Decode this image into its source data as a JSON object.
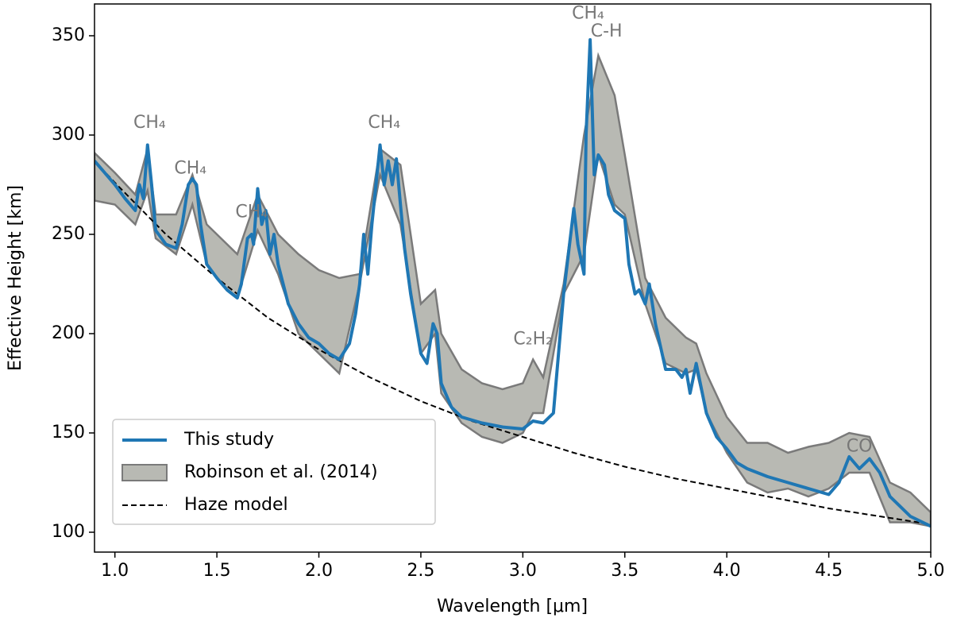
{
  "chart_data": {
    "type": "line",
    "xlabel": "Wavelength [μm]",
    "ylabel": "Effective Height [km]",
    "xlim": [
      0.9,
      5.0
    ],
    "ylim": [
      90,
      366
    ],
    "xticks": [
      {
        "value": 1,
        "label": "1.0"
      },
      {
        "value": 1.5,
        "label": "1.5"
      },
      {
        "value": 2,
        "label": "2.0"
      },
      {
        "value": 2.5,
        "label": "2.5"
      },
      {
        "value": 3,
        "label": "3.0"
      },
      {
        "value": 3.5,
        "label": "3.5"
      },
      {
        "value": 4,
        "label": "4.0"
      },
      {
        "value": 4.5,
        "label": "4.5"
      },
      {
        "value": 5,
        "label": "5.0"
      }
    ],
    "yticks": [
      100,
      150,
      200,
      250,
      300,
      350
    ],
    "legend": "lower left",
    "annotations": [
      "CH₄",
      "CH₄",
      "CH₄",
      "CH₄",
      "CH₄",
      "C-H",
      "C₂H₂",
      "CO"
    ],
    "series": [
      {
        "name": "This study",
        "color": "#1f77b4",
        "style": "line",
        "x": [
          0.9,
          1.0,
          1.05,
          1.1,
          1.12,
          1.14,
          1.16,
          1.18,
          1.2,
          1.25,
          1.3,
          1.33,
          1.36,
          1.38,
          1.4,
          1.42,
          1.45,
          1.5,
          1.55,
          1.6,
          1.62,
          1.65,
          1.67,
          1.68,
          1.7,
          1.72,
          1.74,
          1.76,
          1.78,
          1.8,
          1.85,
          1.9,
          1.95,
          2.0,
          2.05,
          2.1,
          2.15,
          2.18,
          2.2,
          2.22,
          2.24,
          2.26,
          2.28,
          2.3,
          2.32,
          2.34,
          2.36,
          2.38,
          2.4,
          2.42,
          2.45,
          2.5,
          2.53,
          2.56,
          2.58,
          2.6,
          2.65,
          2.7,
          2.8,
          2.9,
          3.0,
          3.05,
          3.1,
          3.15,
          3.2,
          3.25,
          3.27,
          3.3,
          3.31,
          3.33,
          3.35,
          3.37,
          3.4,
          3.42,
          3.45,
          3.5,
          3.52,
          3.55,
          3.57,
          3.6,
          3.62,
          3.65,
          3.7,
          3.75,
          3.78,
          3.8,
          3.82,
          3.85,
          3.88,
          3.9,
          3.95,
          4.0,
          4.05,
          4.1,
          4.15,
          4.2,
          4.3,
          4.4,
          4.5,
          4.55,
          4.6,
          4.65,
          4.7,
          4.75,
          4.8,
          4.9,
          5.0
        ],
        "values": [
          287,
          275,
          268,
          262,
          275,
          268,
          295,
          275,
          252,
          245,
          243,
          255,
          275,
          278,
          275,
          255,
          235,
          228,
          222,
          218,
          225,
          248,
          250,
          245,
          273,
          255,
          262,
          240,
          250,
          235,
          215,
          205,
          198,
          195,
          190,
          187,
          195,
          210,
          225,
          250,
          230,
          255,
          275,
          295,
          275,
          287,
          275,
          288,
          265,
          243,
          220,
          190,
          185,
          205,
          200,
          175,
          163,
          158,
          155,
          153,
          152,
          156,
          155,
          160,
          220,
          263,
          245,
          230,
          300,
          348,
          280,
          290,
          285,
          270,
          262,
          258,
          235,
          220,
          222,
          215,
          225,
          205,
          182,
          182,
          178,
          182,
          170,
          185,
          170,
          160,
          148,
          142,
          135,
          132,
          130,
          128,
          125,
          122,
          119,
          125,
          138,
          132,
          137,
          130,
          118,
          108,
          103
        ]
      },
      {
        "name": "Robinson et al. (2014)",
        "color": "#b8b9b3",
        "edgecolor": "#7a7a7a",
        "style": "band",
        "x": [
          0.9,
          1.0,
          1.1,
          1.16,
          1.2,
          1.3,
          1.38,
          1.45,
          1.55,
          1.6,
          1.7,
          1.8,
          1.9,
          2.0,
          2.1,
          2.2,
          2.3,
          2.4,
          2.5,
          2.57,
          2.6,
          2.7,
          2.8,
          2.9,
          3.0,
          3.05,
          3.1,
          3.2,
          3.3,
          3.37,
          3.45,
          3.5,
          3.6,
          3.7,
          3.8,
          3.85,
          3.9,
          4.0,
          4.1,
          4.2,
          4.3,
          4.4,
          4.5,
          4.6,
          4.7,
          4.8,
          4.9,
          5.0
        ],
        "lower": [
          267,
          265,
          255,
          272,
          248,
          240,
          265,
          235,
          222,
          218,
          252,
          230,
          200,
          190,
          180,
          225,
          280,
          255,
          190,
          200,
          170,
          155,
          148,
          145,
          150,
          160,
          160,
          220,
          240,
          290,
          265,
          260,
          215,
          185,
          180,
          182,
          160,
          140,
          125,
          120,
          122,
          118,
          122,
          130,
          130,
          105,
          105,
          103
        ],
        "upper": [
          291,
          281,
          270,
          293,
          260,
          260,
          280,
          255,
          245,
          240,
          270,
          250,
          240,
          232,
          228,
          230,
          293,
          285,
          215,
          222,
          200,
          182,
          175,
          172,
          175,
          187,
          178,
          225,
          300,
          340,
          320,
          290,
          228,
          208,
          198,
          195,
          180,
          158,
          145,
          145,
          140,
          143,
          145,
          150,
          148,
          125,
          120,
          110
        ]
      },
      {
        "name": "Haze model",
        "color": "#000000",
        "style": "dashed",
        "x": [
          0.9,
          1.0,
          1.25,
          1.5,
          1.75,
          2.0,
          2.25,
          2.5,
          2.75,
          3.0,
          3.25,
          3.5,
          3.75,
          4.0,
          4.25,
          4.5,
          4.75,
          5.0
        ],
        "values": [
          287,
          276,
          250,
          228,
          208,
          192,
          178,
          166,
          156,
          148,
          140,
          133,
          127,
          122,
          117,
          112,
          108,
          104
        ]
      }
    ]
  }
}
